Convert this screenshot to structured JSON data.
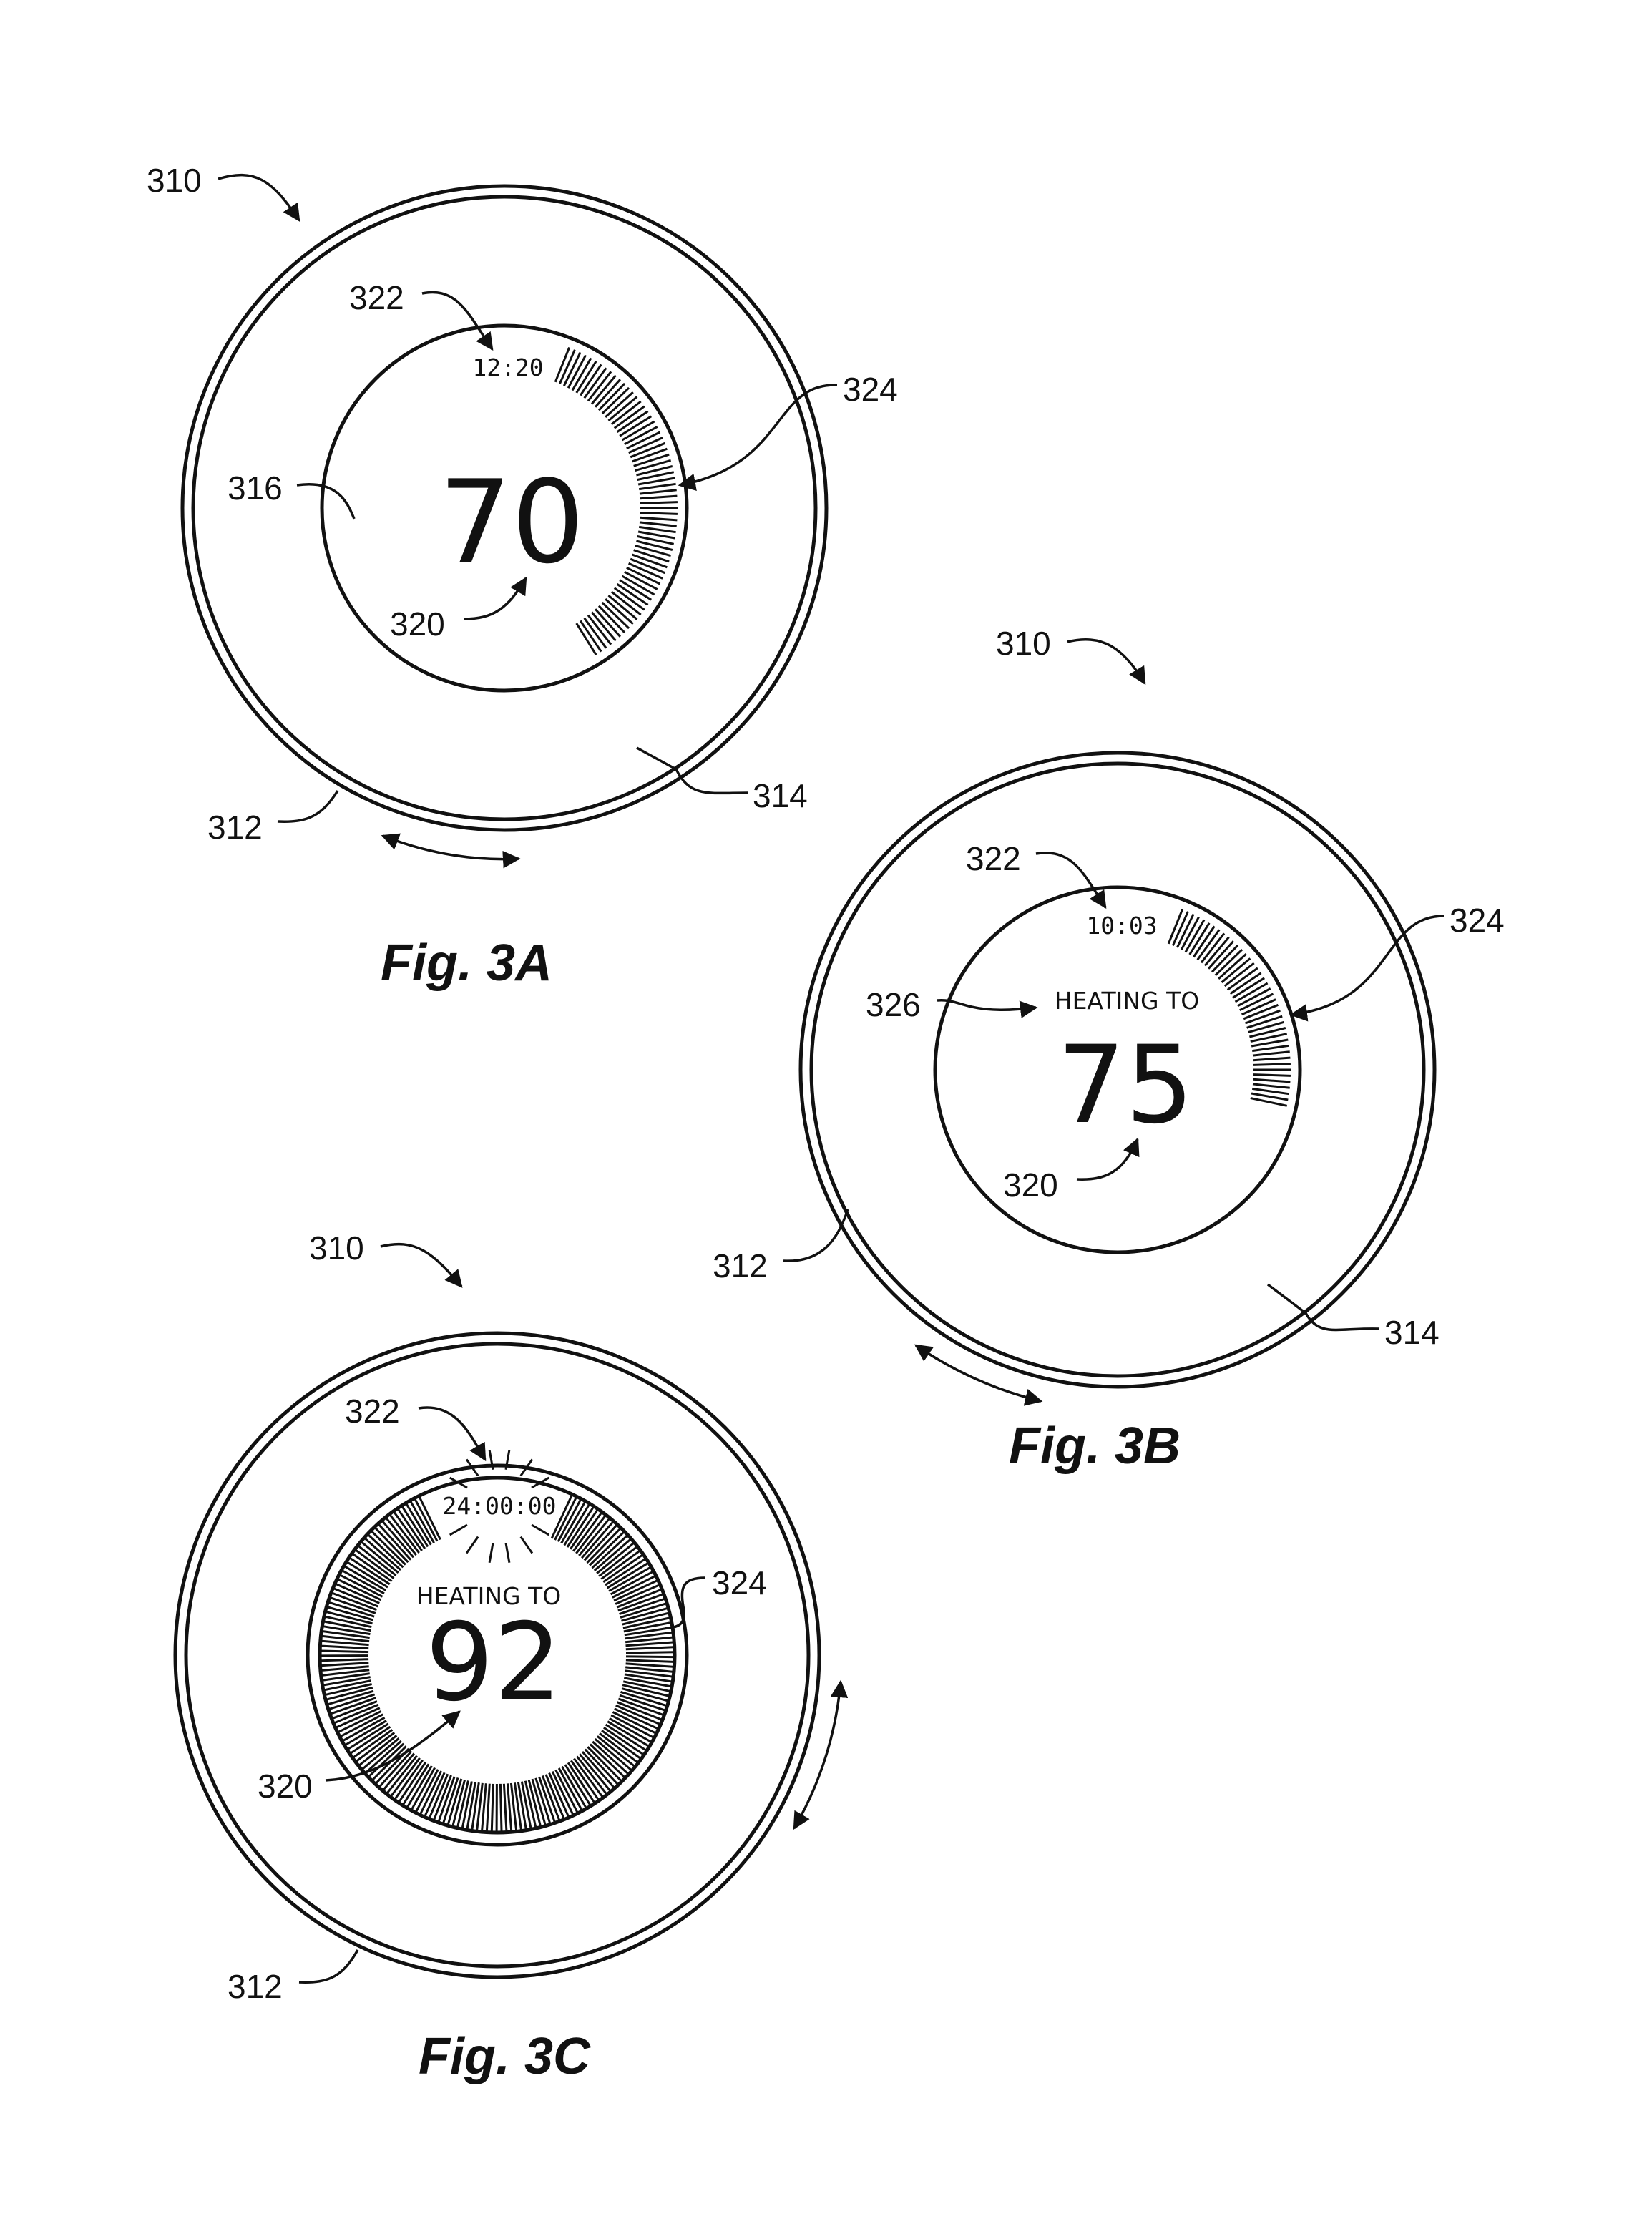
{
  "figures": [
    {
      "id": "3A",
      "caption": "Fig. 3A",
      "time": "12:20",
      "status": "",
      "temperature": "70",
      "refs": {
        "device": "310",
        "ring": "312",
        "outer": "314",
        "display": "316",
        "temperature": "320",
        "time": "322",
        "ticks": "324"
      }
    },
    {
      "id": "3B",
      "caption": "Fig. 3B",
      "time": "10:03",
      "status": "HEATING TO",
      "temperature": "75",
      "refs": {
        "device": "310",
        "ring": "312",
        "outer": "314",
        "temperature": "320",
        "time": "322",
        "ticks": "324",
        "status": "326"
      }
    },
    {
      "id": "3C",
      "caption": "Fig. 3C",
      "time": "24:00:00",
      "status": "HEATING TO",
      "temperature": "92",
      "refs": {
        "device": "310",
        "ring": "312",
        "temperature": "320",
        "time": "322",
        "ticks": "324"
      }
    }
  ],
  "colors": {
    "ink": "#111111",
    "background": "#ffffff"
  }
}
